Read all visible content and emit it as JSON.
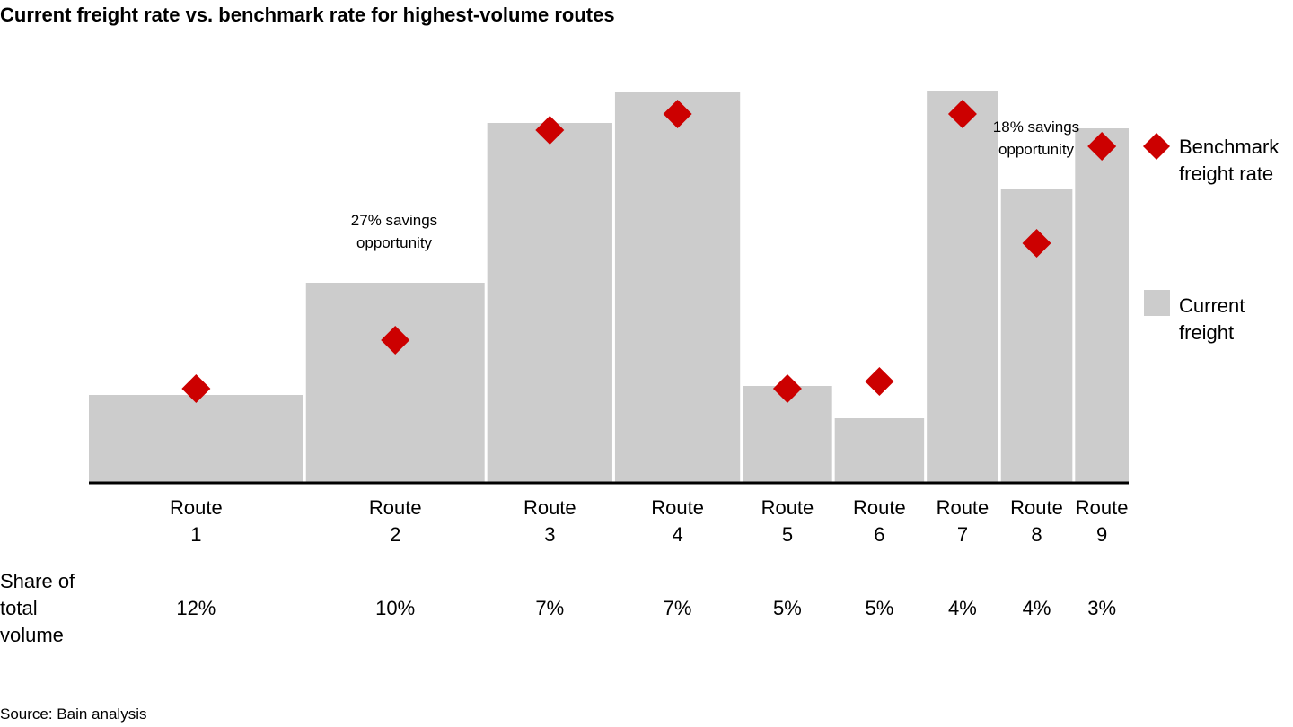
{
  "chart_data": {
    "type": "variwide",
    "title": "Current freight rate vs. benchmark rate for highest-volume routes",
    "categories": [
      "Route 1",
      "Route 2",
      "Route 3",
      "Route 4",
      "Route 5",
      "Route 6",
      "Route 7",
      "Route 8",
      "Route 9"
    ],
    "series": [
      {
        "name": "Current freight",
        "color": "#cccccc",
        "values": [
          98,
          223,
          401,
          435,
          108,
          72,
          437,
          327,
          395
        ]
      },
      {
        "name": "Benchmark freight rate",
        "color": "#cc0000",
        "values": [
          105,
          159,
          393,
          411,
          105,
          113,
          411,
          267,
          375
        ]
      }
    ],
    "share": {
      "title": "Share of total volume",
      "values": [
        12,
        10,
        7,
        7,
        5,
        5,
        4,
        4,
        3
      ],
      "value_labels": [
        "12%",
        "10%",
        "7%",
        "7%",
        "5%",
        "5%",
        "4%",
        "4%",
        "3%"
      ]
    },
    "ylim": [
      0,
      440
    ],
    "annotations": [
      "27% savings opportunity",
      "18% savings opportunity"
    ],
    "source": "Source: Bain analysis"
  }
}
